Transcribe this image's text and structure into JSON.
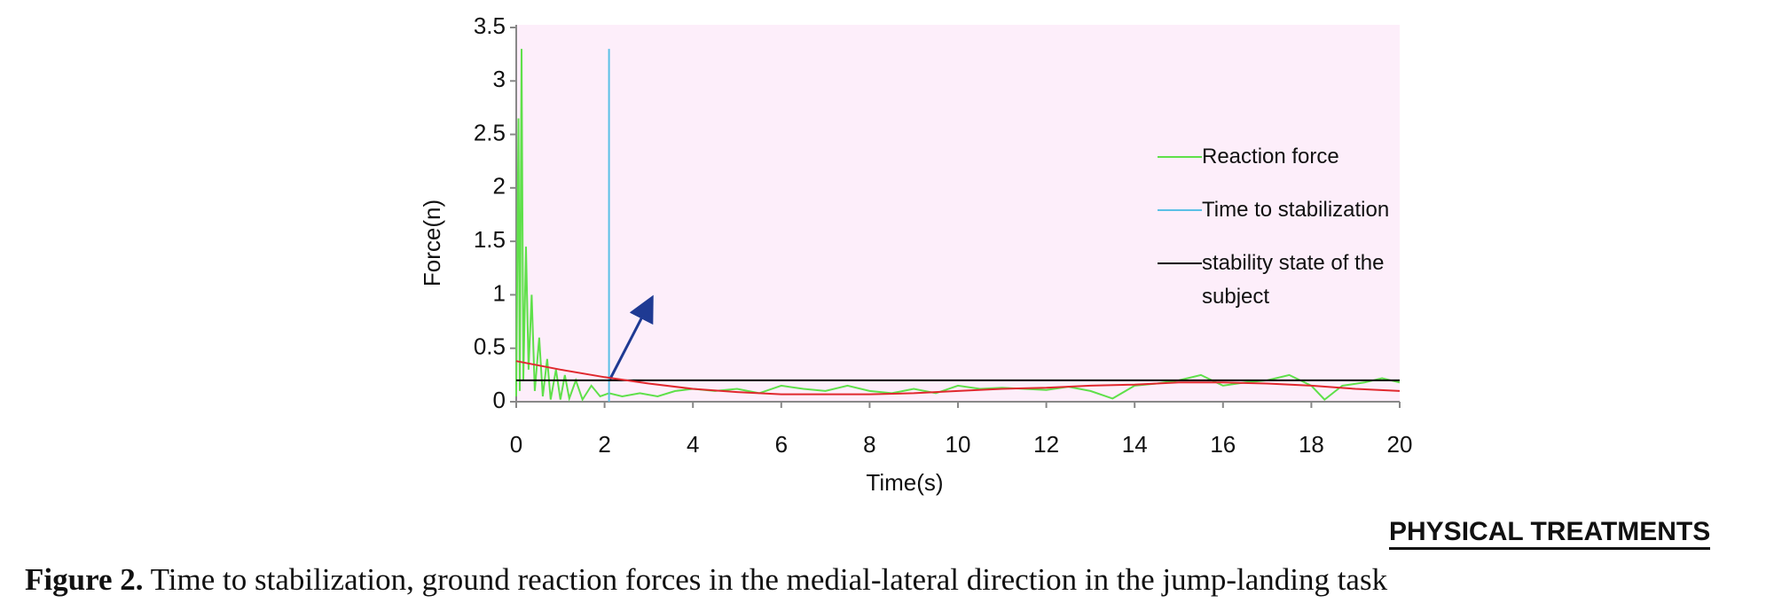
{
  "chart_data": {
    "type": "line",
    "xlabel": "Time(s)",
    "ylabel": "Force(n)",
    "xlim": [
      0,
      20
    ],
    "xticks": [
      0,
      2,
      4,
      6,
      8,
      10,
      12,
      14,
      16,
      18,
      20
    ],
    "ylim": [
      0,
      3.5
    ],
    "yticks": [
      0,
      0.5,
      1,
      1.5,
      2,
      2.5,
      3,
      3.5
    ],
    "background": "#fdeefa",
    "series": [
      {
        "name": "Reaction force",
        "color": "#5fe04a",
        "x": [
          0,
          0.05,
          0.08,
          0.12,
          0.16,
          0.22,
          0.28,
          0.35,
          0.42,
          0.52,
          0.6,
          0.7,
          0.78,
          0.9,
          1.0,
          1.1,
          1.2,
          1.35,
          1.5,
          1.7,
          1.9,
          2.1,
          2.4,
          2.8,
          3.2,
          3.6,
          4.0,
          4.5,
          5.0,
          5.5,
          6.0,
          6.5,
          7.0,
          7.5,
          8.0,
          8.5,
          9.0,
          9.5,
          10.0,
          10.5,
          11.0,
          11.5,
          12.0,
          12.5,
          13.0,
          13.5,
          14.0,
          14.5,
          15.0,
          15.5,
          16.0,
          16.5,
          17.0,
          17.5,
          18.0,
          18.3,
          18.7,
          19.2,
          19.6,
          20.0
        ],
        "values": [
          0.05,
          2.65,
          0.1,
          3.3,
          0.2,
          1.45,
          0.3,
          1.0,
          0.1,
          0.6,
          0.05,
          0.4,
          0.02,
          0.3,
          0.02,
          0.25,
          0.03,
          0.2,
          0.02,
          0.15,
          0.05,
          0.08,
          0.05,
          0.08,
          0.05,
          0.1,
          0.12,
          0.1,
          0.12,
          0.08,
          0.15,
          0.12,
          0.1,
          0.15,
          0.1,
          0.08,
          0.12,
          0.08,
          0.15,
          0.12,
          0.13,
          0.12,
          0.11,
          0.14,
          0.1,
          0.03,
          0.15,
          0.17,
          0.2,
          0.25,
          0.15,
          0.18,
          0.2,
          0.25,
          0.15,
          0.02,
          0.15,
          0.18,
          0.22,
          0.18
        ]
      },
      {
        "name": "Time to stabilization",
        "color": "#5bc0e6",
        "x": [
          2.1,
          2.1
        ],
        "values": [
          0,
          3.3
        ]
      },
      {
        "name": "stability state of the subject",
        "color": "#000000",
        "x": [
          0,
          20
        ],
        "values": [
          0.2,
          0.2
        ]
      },
      {
        "color": "#e0282e",
        "x": [
          0,
          1,
          2,
          3,
          4,
          5,
          6,
          7,
          8,
          9,
          10,
          11,
          12,
          13,
          14,
          15,
          16,
          17,
          18,
          19,
          20
        ],
        "values": [
          0.38,
          0.3,
          0.23,
          0.17,
          0.12,
          0.09,
          0.07,
          0.07,
          0.07,
          0.08,
          0.1,
          0.12,
          0.13,
          0.15,
          0.16,
          0.18,
          0.18,
          0.17,
          0.15,
          0.12,
          0.1
        ]
      }
    ]
  },
  "logo": "PHYSICAL TREATMENTS",
  "caption": {
    "label": "Figure 2.",
    "text": "Time to stabilization, ground reaction forces in the medial-lateral direction in the jump-landing task"
  }
}
